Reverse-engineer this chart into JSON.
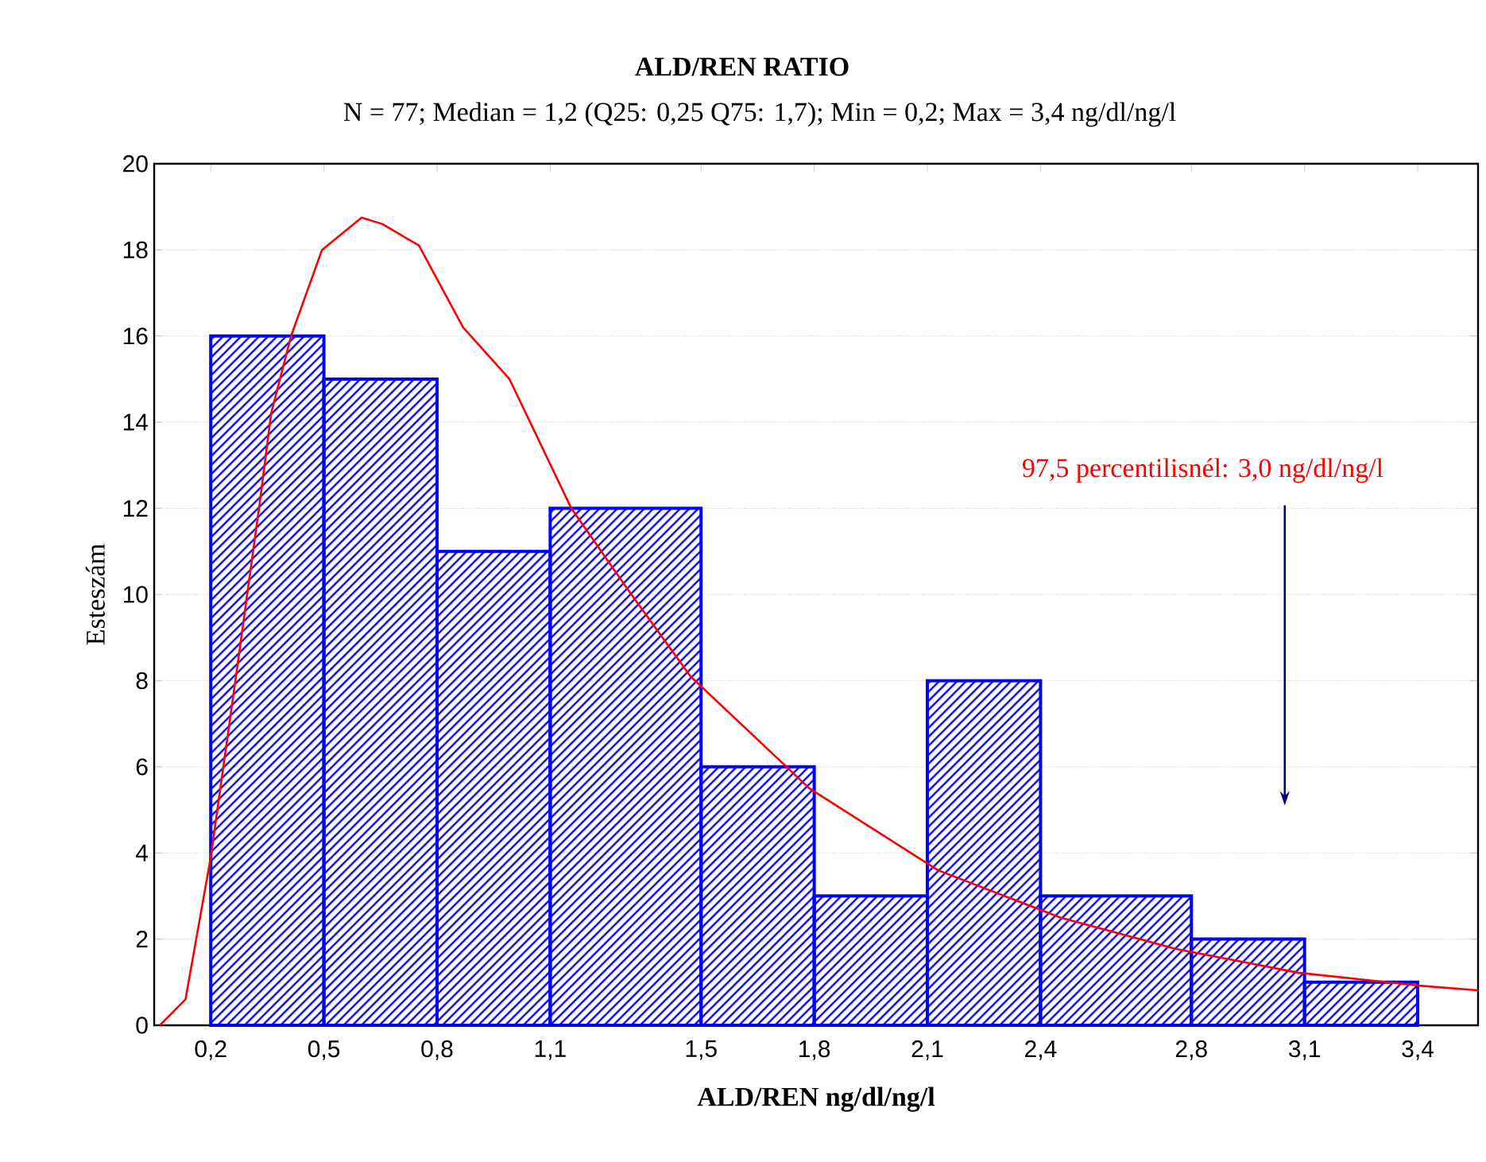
{
  "chart_data": {
    "type": "histogram",
    "title": "ALD/REN RATIO",
    "subtitle": "N = 77; Median = 1,2 (Q25: 0,25 Q75: 1,7); Min = 0,2;  Max = 3,4 ng/dl/ng/l",
    "xlabel": "ALD/REN ng/dl/ng/l",
    "ylabel": "Esteszám",
    "bins": [
      0.2,
      0.5,
      0.8,
      1.1,
      1.5,
      1.8,
      2.1,
      2.4,
      2.8,
      3.1,
      3.4
    ],
    "values": [
      16,
      15,
      11,
      12,
      6,
      3,
      8,
      3,
      2,
      1
    ],
    "color": "#0000ff",
    "series": [
      {
        "type": "line",
        "color": "#ff0000",
        "x": [
          0.065,
          0.133,
          0.2,
          0.27,
          0.331,
          0.36,
          0.413,
          0.495,
          0.6,
          0.655,
          0.752,
          0.869,
          0.992,
          1.156,
          1.307,
          1.472,
          1.787,
          2.128,
          2.453,
          2.76,
          3.084,
          3.404,
          3.56
        ],
        "values": [
          0,
          0.6,
          3.9,
          8.3,
          12.2,
          14.2,
          16,
          18,
          18.75,
          18.6,
          18.1,
          16.2,
          15,
          12,
          10.1,
          8.1,
          5.5,
          3.6,
          2.5,
          1.77,
          1.22,
          0.92,
          0.81
        ]
      }
    ],
    "annotations": [
      "97,5 percentilisnél: 3,0 ng/dl/ng/l"
    ],
    "xlim": [
      0.05,
      3.56
    ],
    "ylim": [
      0,
      20
    ],
    "xticks": [
      {
        "value": 0.2,
        "label": "0,2"
      },
      {
        "value": 0.5,
        "label": "0,5"
      },
      {
        "value": 0.8,
        "label": "0,8"
      },
      {
        "value": 1.1,
        "label": "1,1"
      },
      {
        "value": 1.5,
        "label": "1,5"
      },
      {
        "value": 1.8,
        "label": "1,8"
      },
      {
        "value": 2.1,
        "label": "2,1"
      },
      {
        "value": 2.4,
        "label": "2,4"
      },
      {
        "value": 2.8,
        "label": "2,8"
      },
      {
        "value": 3.1,
        "label": "3,1"
      },
      {
        "value": 3.4,
        "label": "3,4"
      }
    ],
    "yticks": [
      0,
      2,
      4,
      6,
      8,
      10,
      12,
      14,
      16,
      18,
      20
    ],
    "grid": "y"
  }
}
